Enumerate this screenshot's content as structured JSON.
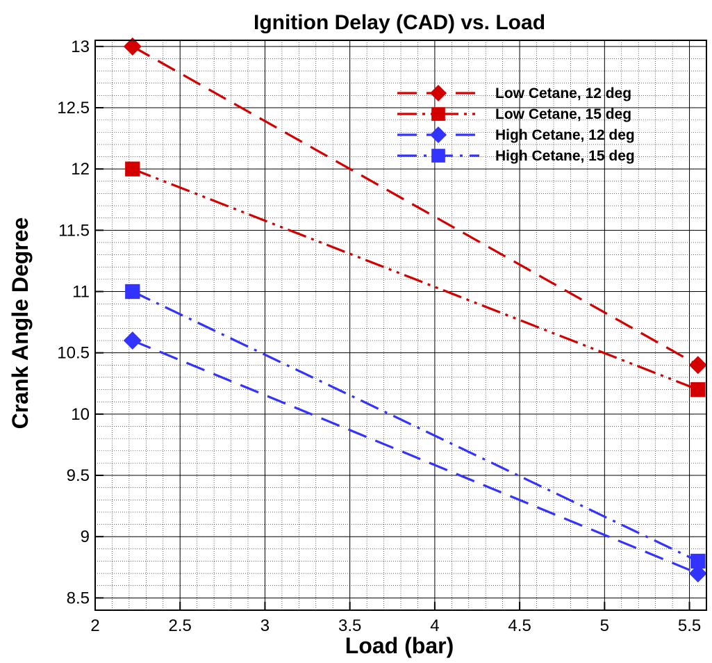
{
  "chart_data": {
    "type": "line",
    "title": "Ignition Delay (CAD) vs. Load",
    "xlabel": "Load (bar)",
    "ylabel": "Crank Angle Degree",
    "xlim": [
      2,
      5.6
    ],
    "ylim": [
      8.4,
      13.05
    ],
    "xticks": [
      2,
      2.5,
      3,
      3.5,
      4,
      4.5,
      5,
      5.5
    ],
    "xtick_labels": [
      "2",
      "2.5",
      "3",
      "3.5",
      "4",
      "4.5",
      "5",
      "5.5"
    ],
    "yticks": [
      8.5,
      9,
      9.5,
      10,
      10.5,
      11,
      11.5,
      12,
      12.5,
      13
    ],
    "ytick_labels": [
      "8.5",
      "9",
      "9.5",
      "10",
      "10.5",
      "11",
      "11.5",
      "12",
      "12.5",
      "13"
    ],
    "grid": true,
    "minor_grid": true,
    "legend_position": "top-right",
    "series": [
      {
        "name": "Low Cetane, 12 deg",
        "color": "#d40000",
        "marker": "diamond",
        "dash": "dashed",
        "x": [
          2.22,
          5.55
        ],
        "y": [
          13.0,
          10.4
        ]
      },
      {
        "name": "Low Cetane, 15 deg",
        "color": "#d40000",
        "marker": "square",
        "dash": "dash-dot-dot",
        "x": [
          2.22,
          5.55
        ],
        "y": [
          12.0,
          10.2
        ]
      },
      {
        "name": "High Cetane, 12 deg",
        "color": "#3333ff",
        "marker": "diamond",
        "dash": "dashed",
        "x": [
          2.22,
          5.55
        ],
        "y": [
          10.6,
          8.7
        ]
      },
      {
        "name": "High Cetane, 15 deg",
        "color": "#3333ff",
        "marker": "square",
        "dash": "dash-dot",
        "x": [
          2.22,
          5.55
        ],
        "y": [
          11.0,
          8.8
        ]
      }
    ]
  }
}
